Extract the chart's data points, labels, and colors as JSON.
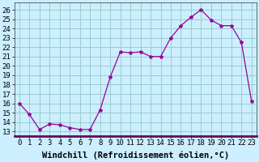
{
  "x": [
    0,
    1,
    2,
    3,
    4,
    5,
    6,
    7,
    8,
    9,
    10,
    11,
    12,
    13,
    14,
    15,
    16,
    17,
    18,
    19,
    20,
    21,
    22,
    23
  ],
  "y": [
    16.0,
    14.8,
    13.2,
    13.8,
    13.7,
    13.4,
    13.2,
    13.2,
    15.3,
    18.8,
    21.5,
    21.4,
    21.5,
    21.0,
    21.0,
    23.0,
    24.3,
    25.2,
    26.0,
    24.9,
    24.3,
    24.3,
    22.5,
    16.2
  ],
  "line_color": "#990099",
  "marker": "*",
  "marker_size": 3,
  "bg_color": "#cceeff",
  "grid_color": "#99cccc",
  "xlabel": "Windchill (Refroidissement éolien,°C)",
  "ylim": [
    12.5,
    26.8
  ],
  "xlim": [
    -0.5,
    23.5
  ],
  "yticks": [
    13,
    14,
    15,
    16,
    17,
    18,
    19,
    20,
    21,
    22,
    23,
    24,
    25,
    26
  ],
  "xticks": [
    0,
    1,
    2,
    3,
    4,
    5,
    6,
    7,
    8,
    9,
    10,
    11,
    12,
    13,
    14,
    15,
    16,
    17,
    18,
    19,
    20,
    21,
    22,
    23
  ],
  "tick_fontsize": 6.5,
  "xlabel_fontsize": 7.5,
  "xlabel_bold": true
}
